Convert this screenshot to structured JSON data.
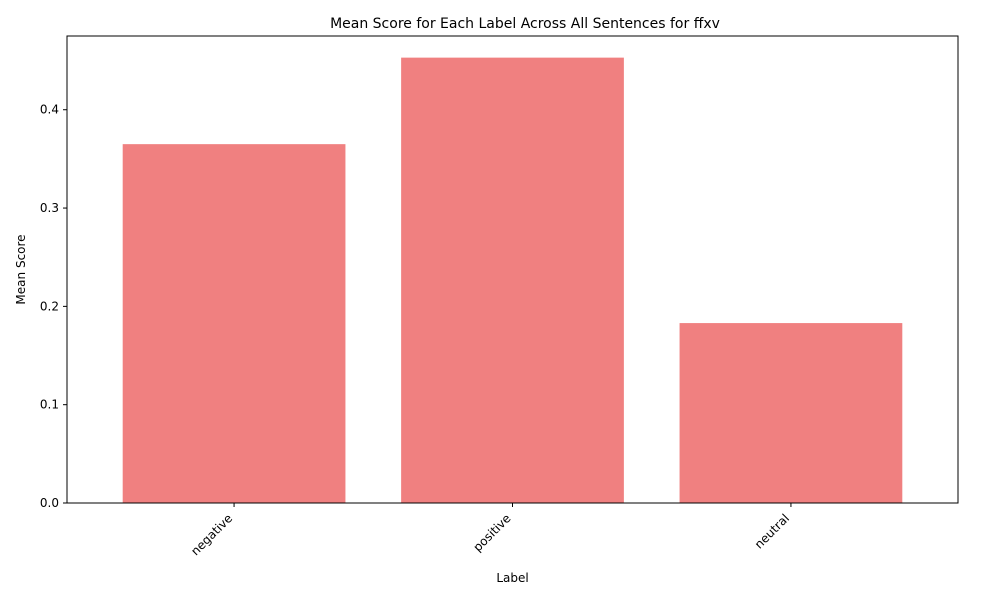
{
  "chart_data": {
    "type": "bar",
    "title": "Mean Score for Each Label Across All Sentences for ffxv",
    "xlabel": "Label",
    "ylabel": "Mean Score",
    "categories": [
      "negative",
      "positive",
      "neutral"
    ],
    "values": [
      0.365,
      0.453,
      0.183
    ],
    "ylim": [
      0,
      0.475
    ],
    "yticks": [
      0.0,
      0.1,
      0.2,
      0.3,
      0.4
    ],
    "ytick_labels": [
      "0.0",
      "0.1",
      "0.2",
      "0.3",
      "0.4"
    ],
    "bar_color": "#f08080",
    "grid": false,
    "legend": "none",
    "xtick_rotation": "45-degree"
  }
}
